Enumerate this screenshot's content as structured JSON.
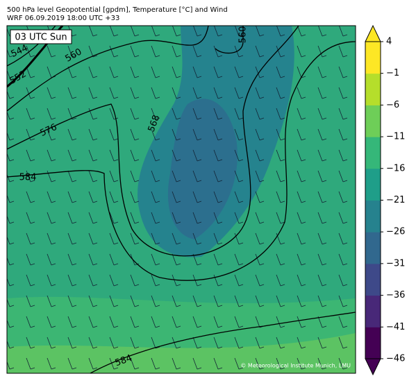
{
  "header": {
    "title": "500 hPa level Geopotential [gpdm], Temperature [°C] and Wind",
    "subtitle": "WRF 06.09.2019 18:00 UTC +33"
  },
  "time_label": "03 UTC Sun",
  "contour_labels": [
    "544",
    "552",
    "560",
    "576",
    "584",
    "568",
    "560",
    "584"
  ],
  "credit": "© Meteorological Institute Munich, LMU",
  "colorbar": {
    "range": [
      -46,
      4
    ],
    "ticks": [
      {
        "value": 4,
        "label": "4"
      },
      {
        "value": -1,
        "label": "−1"
      },
      {
        "value": -6,
        "label": "−6"
      },
      {
        "value": -11,
        "label": "−11"
      },
      {
        "value": -16,
        "label": "−16"
      },
      {
        "value": -21,
        "label": "−21"
      },
      {
        "value": -26,
        "label": "−26"
      },
      {
        "value": -31,
        "label": "−31"
      },
      {
        "value": -36,
        "label": "−36"
      },
      {
        "value": -41,
        "label": "−41"
      },
      {
        "value": -46,
        "label": "−46"
      }
    ]
  }
}
